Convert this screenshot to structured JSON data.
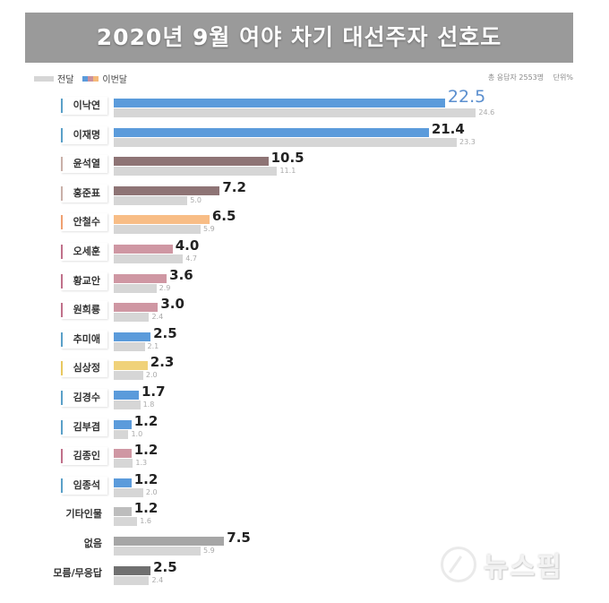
{
  "header": {
    "title": "2020년 9월 여야 차기 대선주자 선호도"
  },
  "legend": {
    "prev_label": "전달",
    "cur_label": "이번달",
    "prev_color": "#d6d6d6",
    "cur_colors": [
      "#5b9bdb",
      "#c9919e",
      "#f5b979"
    ]
  },
  "meta": {
    "respondents": "총 응답자 2553명",
    "unit": "단위%"
  },
  "colors": {
    "blue": "#5b9bdb",
    "brown": "#8e7475",
    "orange": "#f8bd86",
    "pink": "#cf97a3",
    "yellow": "#f0d27a",
    "gray_light": "#bdbdbd",
    "gray_mid": "#a6a6a6",
    "gray_dark": "#707070",
    "prev": "#d6d6d6",
    "tick_blue": "#5aa0c8",
    "tick_brown": "#c9b0a8",
    "tick_orange": "#f0a070",
    "tick_pink": "#c0708a",
    "tick_yellow": "#e8c860"
  },
  "watermark": {
    "text": "뉴스핌"
  },
  "chart_data": {
    "type": "bar",
    "orientation": "horizontal",
    "title": "2020년 9월 여야 차기 대선주자 선호도",
    "subtitle": "총 응답자 2553명 · 단위%",
    "xlabel": "",
    "ylabel": "",
    "grid": false,
    "legend_position": "top-left",
    "categories": [
      "이낙연",
      "이재명",
      "윤석열",
      "홍준표",
      "안철수",
      "오세훈",
      "황교안",
      "원희룡",
      "추미애",
      "심상정",
      "김경수",
      "김부겸",
      "김종인",
      "임종석",
      "기타인물",
      "없음",
      "모름/무응답"
    ],
    "series": [
      {
        "name": "이번달",
        "values": [
          22.5,
          21.4,
          10.5,
          7.2,
          6.5,
          4.0,
          3.6,
          3.0,
          2.5,
          2.3,
          1.7,
          1.2,
          1.2,
          1.2,
          1.2,
          7.5,
          2.5
        ]
      },
      {
        "name": "전달",
        "values": [
          24.6,
          23.3,
          11.1,
          5.0,
          5.9,
          4.7,
          2.9,
          2.4,
          2.1,
          2.0,
          1.8,
          1.0,
          1.3,
          2.0,
          1.6,
          5.9,
          2.4
        ]
      }
    ],
    "xlim": [
      0,
      30
    ]
  },
  "rows": [
    {
      "name": "이낙연",
      "cur": "22.5",
      "prev": "24.6",
      "cur_v": 22.5,
      "prev_v": 24.6,
      "color": "blue",
      "tick": "tick_blue",
      "boxed": true,
      "big": true
    },
    {
      "name": "이재명",
      "cur": "21.4",
      "prev": "23.3",
      "cur_v": 21.4,
      "prev_v": 23.3,
      "color": "blue",
      "tick": "tick_blue",
      "boxed": true
    },
    {
      "name": "윤석열",
      "cur": "10.5",
      "prev": "11.1",
      "cur_v": 10.5,
      "prev_v": 11.1,
      "color": "brown",
      "tick": "tick_brown",
      "boxed": true
    },
    {
      "name": "홍준표",
      "cur": "7.2",
      "prev": "5.0",
      "cur_v": 7.2,
      "prev_v": 5.0,
      "color": "brown",
      "tick": "tick_brown",
      "boxed": true
    },
    {
      "name": "안철수",
      "cur": "6.5",
      "prev": "5.9",
      "cur_v": 6.5,
      "prev_v": 5.9,
      "color": "orange",
      "tick": "tick_orange",
      "boxed": true
    },
    {
      "name": "오세훈",
      "cur": "4.0",
      "prev": "4.7",
      "cur_v": 4.0,
      "prev_v": 4.7,
      "color": "pink",
      "tick": "tick_pink",
      "boxed": true
    },
    {
      "name": "황교안",
      "cur": "3.6",
      "prev": "2.9",
      "cur_v": 3.6,
      "prev_v": 2.9,
      "color": "pink",
      "tick": "tick_pink",
      "boxed": true
    },
    {
      "name": "원희룡",
      "cur": "3.0",
      "prev": "2.4",
      "cur_v": 3.0,
      "prev_v": 2.4,
      "color": "pink",
      "tick": "tick_pink",
      "boxed": true
    },
    {
      "name": "추미애",
      "cur": "2.5",
      "prev": "2.1",
      "cur_v": 2.5,
      "prev_v": 2.1,
      "color": "blue",
      "tick": "tick_blue",
      "boxed": true
    },
    {
      "name": "심상정",
      "cur": "2.3",
      "prev": "2.0",
      "cur_v": 2.3,
      "prev_v": 2.0,
      "color": "yellow",
      "tick": "tick_yellow",
      "boxed": true
    },
    {
      "name": "김경수",
      "cur": "1.7",
      "prev": "1.8",
      "cur_v": 1.7,
      "prev_v": 1.8,
      "color": "blue",
      "tick": "tick_blue",
      "boxed": true
    },
    {
      "name": "김부겸",
      "cur": "1.2",
      "prev": "1.0",
      "cur_v": 1.2,
      "prev_v": 1.0,
      "color": "blue",
      "tick": "tick_blue",
      "boxed": true
    },
    {
      "name": "김종인",
      "cur": "1.2",
      "prev": "1.3",
      "cur_v": 1.2,
      "prev_v": 1.3,
      "color": "pink",
      "tick": "tick_pink",
      "boxed": true
    },
    {
      "name": "임종석",
      "cur": "1.2",
      "prev": "2.0",
      "cur_v": 1.2,
      "prev_v": 2.0,
      "color": "blue",
      "tick": "tick_blue",
      "boxed": true
    },
    {
      "name": "기타인물",
      "cur": "1.2",
      "prev": "1.6",
      "cur_v": 1.2,
      "prev_v": 1.6,
      "color": "gray_light",
      "boxed": false
    },
    {
      "name": "없음",
      "cur": "7.5",
      "prev": "5.9",
      "cur_v": 7.5,
      "prev_v": 5.9,
      "color": "gray_mid",
      "boxed": false
    },
    {
      "name": "모름/무응답",
      "cur": "2.5",
      "prev": "2.4",
      "cur_v": 2.5,
      "prev_v": 2.4,
      "color": "gray_dark",
      "boxed": false
    }
  ]
}
